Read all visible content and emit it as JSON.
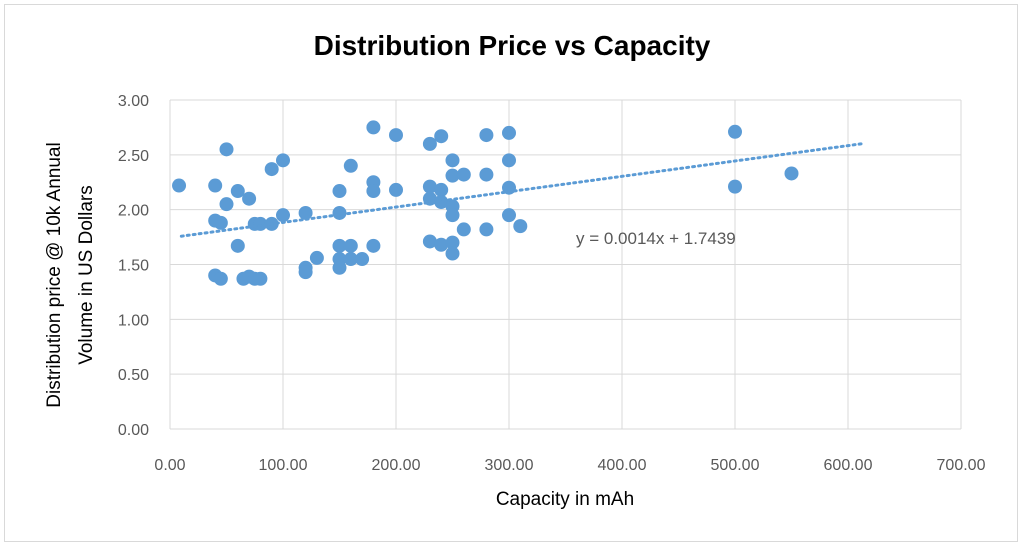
{
  "chart_data": {
    "type": "scatter",
    "title": "Distribution Price vs Capacity",
    "xlabel": "Capacity in mAh",
    "ylabel_lines": [
      "Distribution price @ 10k Annual",
      "Volume in US Dollars"
    ],
    "xlim": [
      0,
      700
    ],
    "ylim": [
      0,
      3
    ],
    "x_ticks": [
      "0.00",
      "100.00",
      "200.00",
      "300.00",
      "400.00",
      "500.00",
      "600.00",
      "700.00"
    ],
    "y_ticks": [
      "0.00",
      "0.50",
      "1.00",
      "1.50",
      "2.00",
      "2.50",
      "3.00"
    ],
    "grid": "horizontal",
    "trendline": {
      "slope": 0.0014,
      "intercept": 1.7439,
      "x_range": [
        10,
        615
      ],
      "equation": "y = 0.0014x + 1.7439"
    },
    "colors": {
      "marker": "#5b9bd5",
      "grid": "#d9d9d9",
      "tick_text": "#595959"
    },
    "points": [
      [
        8,
        2.22
      ],
      [
        40,
        2.22
      ],
      [
        40,
        1.9
      ],
      [
        45,
        1.88
      ],
      [
        50,
        2.55
      ],
      [
        50,
        2.05
      ],
      [
        60,
        2.17
      ],
      [
        70,
        2.1
      ],
      [
        75,
        1.87
      ],
      [
        80,
        1.87
      ],
      [
        90,
        2.37
      ],
      [
        90,
        1.87
      ],
      [
        100,
        2.45
      ],
      [
        100,
        1.95
      ],
      [
        60,
        1.67
      ],
      [
        40,
        1.4
      ],
      [
        45,
        1.37
      ],
      [
        65,
        1.37
      ],
      [
        70,
        1.39
      ],
      [
        75,
        1.37
      ],
      [
        80,
        1.37
      ],
      [
        120,
        1.97
      ],
      [
        120,
        1.47
      ],
      [
        120,
        1.43
      ],
      [
        130,
        1.56
      ],
      [
        150,
        2.17
      ],
      [
        150,
        1.97
      ],
      [
        150,
        1.67
      ],
      [
        150,
        1.55
      ],
      [
        150,
        1.47
      ],
      [
        160,
        2.4
      ],
      [
        160,
        1.67
      ],
      [
        160,
        1.55
      ],
      [
        170,
        1.55
      ],
      [
        180,
        2.75
      ],
      [
        180,
        2.25
      ],
      [
        180,
        2.17
      ],
      [
        180,
        1.67
      ],
      [
        200,
        2.68
      ],
      [
        200,
        2.18
      ],
      [
        230,
        2.6
      ],
      [
        230,
        2.21
      ],
      [
        230,
        2.1
      ],
      [
        230,
        1.71
      ],
      [
        240,
        2.67
      ],
      [
        240,
        2.18
      ],
      [
        240,
        2.07
      ],
      [
        240,
        1.68
      ],
      [
        250,
        2.45
      ],
      [
        250,
        2.31
      ],
      [
        250,
        2.03
      ],
      [
        250,
        1.95
      ],
      [
        250,
        1.7
      ],
      [
        250,
        1.6
      ],
      [
        260,
        2.32
      ],
      [
        260,
        1.82
      ],
      [
        280,
        2.68
      ],
      [
        280,
        2.32
      ],
      [
        280,
        1.82
      ],
      [
        300,
        2.7
      ],
      [
        300,
        2.45
      ],
      [
        300,
        2.2
      ],
      [
        300,
        1.95
      ],
      [
        310,
        1.85
      ],
      [
        500,
        2.71
      ],
      [
        500,
        2.21
      ],
      [
        550,
        2.33
      ]
    ]
  }
}
